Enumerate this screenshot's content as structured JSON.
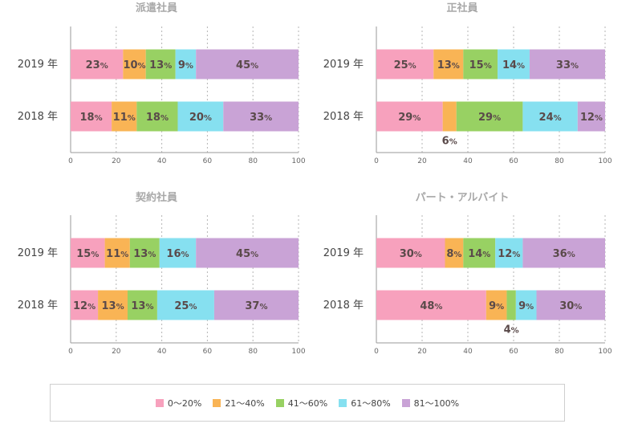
{
  "chart_data": {
    "type": "bar",
    "orientation": "horizontal-stacked-percent",
    "xlim": [
      0,
      100
    ],
    "xticks": [
      "0",
      "20",
      "40",
      "60",
      "80",
      "100"
    ],
    "grid": true,
    "legend_placement": "bottom",
    "legend": [
      {
        "name": "0〜20%",
        "color": "#f7a1bd"
      },
      {
        "name": "21〜40%",
        "color": "#f9b455"
      },
      {
        "name": "41〜60%",
        "color": "#98d163"
      },
      {
        "name": "61〜80%",
        "color": "#86e0f0"
      },
      {
        "name": "81〜100%",
        "color": "#c9a3d6"
      }
    ],
    "panels": [
      {
        "title": "派遣社員",
        "categories": [
          "2019 年",
          "2018 年"
        ],
        "values": [
          [
            23,
            10,
            13,
            9,
            45
          ],
          [
            18,
            11,
            18,
            20,
            33
          ]
        ],
        "labels": [
          [
            "23%",
            "10%",
            "13%",
            "9%",
            "45%"
          ],
          [
            "18%",
            "11%",
            "18%",
            "20%",
            "33%"
          ]
        ]
      },
      {
        "title": "正社員",
        "categories": [
          "2019 年",
          "2018 年"
        ],
        "values": [
          [
            25,
            13,
            15,
            14,
            33
          ],
          [
            29,
            6,
            29,
            24,
            12
          ]
        ],
        "labels": [
          [
            "25%",
            "13%",
            "15%",
            "14%",
            "33%"
          ],
          [
            "29%",
            "6%",
            "29%",
            "24%",
            "12%"
          ]
        ]
      },
      {
        "title": "契約社員",
        "categories": [
          "2019 年",
          "2018 年"
        ],
        "values": [
          [
            15,
            11,
            13,
            16,
            45
          ],
          [
            12,
            13,
            13,
            25,
            37
          ]
        ],
        "labels": [
          [
            "15%",
            "11%",
            "13%",
            "16%",
            "45%"
          ],
          [
            "12%",
            "13%",
            "13%",
            "25%",
            "37%"
          ]
        ]
      },
      {
        "title": "パート・アルバイト",
        "categories": [
          "2019 年",
          "2018 年"
        ],
        "values": [
          [
            30,
            8,
            14,
            12,
            36
          ],
          [
            48,
            9,
            4,
            9,
            30
          ]
        ],
        "labels": [
          [
            "30%",
            "8%",
            "14%",
            "12%",
            "36%"
          ],
          [
            "48%",
            "9%",
            "4%",
            "9%",
            "30%"
          ]
        ]
      }
    ]
  }
}
